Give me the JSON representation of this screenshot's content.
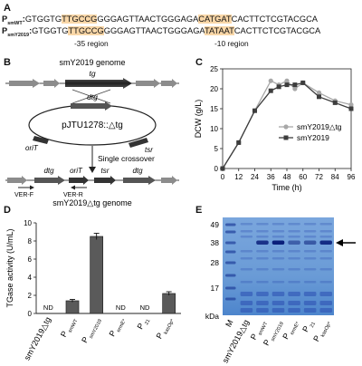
{
  "panel_a": {
    "letter": "A",
    "row1": {
      "label": "P",
      "sub": "smWT",
      "colon": ":",
      "s1": "GTGGTG",
      "s2": "TTGCCG",
      "s3": "GGGAGTTAACTGGGAGA",
      "s4": "CATGAT",
      "s5": "CACTTCTCGTACGCA"
    },
    "row2": {
      "label": "P",
      "sub": "smY2019",
      "colon": ":",
      "s1": "GTGGTG",
      "s2": "TTGCCG",
      "s3": "GGGAGTTAACTGGGAGA",
      "s4": "TATAAT",
      "s5": "CACTTCTCGTACGCA"
    },
    "region35": "-35 region",
    "region10": "-10 region",
    "highlight_color": "#f9d7a8"
  },
  "panel_b": {
    "letter": "B",
    "genome_top": "smY2019 genome",
    "gene_top": "tg",
    "plasmid_gene": "dtg",
    "plasmid_name": "pJTU1278::△tg",
    "oriT": "oriT",
    "tsr": "tsr",
    "crossover": "Single crossover",
    "bottom_dtg_left": "dtg",
    "bottom_oriT": "oriT",
    "bottom_tsr": "tsr",
    "bottom_dtg_right": "dtg",
    "ver_f": "VER-F",
    "ver_r": "VER-R",
    "genome_bottom": "smY2019△tg genome"
  },
  "panel_c": {
    "letter": "C",
    "chart_data": {
      "type": "line",
      "xlabel": "Time (h)",
      "ylabel": "DCW (g/L)",
      "x": [
        0,
        12,
        24,
        36,
        48,
        60,
        72,
        84,
        96
      ],
      "x_detail": [
        0,
        12,
        24,
        36,
        42,
        48,
        54,
        60,
        72,
        84,
        96
      ],
      "xlim": [
        0,
        96
      ],
      "ylim": [
        0,
        25
      ],
      "yticks": [
        0,
        5,
        10,
        15,
        20,
        25
      ],
      "xticks": [
        0,
        12,
        24,
        36,
        48,
        60,
        72,
        84,
        96
      ],
      "legend_position": "right",
      "series": [
        {
          "name": "smY2019△tg",
          "color": "#a8a8a8",
          "marker": "circle",
          "x": [
            0,
            12,
            24,
            36,
            42,
            48,
            54,
            60,
            72,
            84,
            96
          ],
          "values": [
            0,
            6.5,
            14.5,
            22,
            21,
            22,
            20,
            21.5,
            19,
            17,
            16
          ]
        },
        {
          "name": "smY2019",
          "color": "#3d3d3d",
          "marker": "square",
          "x": [
            0,
            12,
            24,
            36,
            42,
            48,
            54,
            60,
            72,
            84,
            96
          ],
          "values": [
            0,
            6.5,
            14.5,
            19.5,
            20.5,
            21,
            21,
            21.5,
            18,
            16.5,
            15
          ]
        }
      ]
    }
  },
  "panel_d": {
    "letter": "D",
    "chart_data": {
      "type": "bar",
      "ylabel": "TGase activity (U/mL)",
      "ylim": [
        0,
        10
      ],
      "yticks": [
        0,
        2,
        4,
        6,
        8,
        10
      ],
      "categories": [
        {
          "main": "smY2019△tg",
          "sub": ""
        },
        {
          "main": "P",
          "sub": "smWT"
        },
        {
          "main": "P",
          "sub": "smY2019"
        },
        {
          "main": "P",
          "sub": "ermE*"
        },
        {
          "main": "P",
          "sub": "21"
        },
        {
          "main": "P",
          "sub": "kasOp*"
        }
      ],
      "values": [
        null,
        1.4,
        8.5,
        null,
        null,
        2.2
      ],
      "errors": [
        0,
        0.15,
        0.35,
        0,
        0,
        0.2
      ],
      "nd_label": "ND",
      "bar_color": "#5a5a5a"
    }
  },
  "panel_e": {
    "letter": "E",
    "markers": [
      "49",
      "38",
      "28",
      "17",
      "kDa"
    ],
    "lanes": [
      {
        "main": "M",
        "sub": ""
      },
      {
        "main": "smY2019△tg",
        "sub": ""
      },
      {
        "main": "P",
        "sub": "smWT"
      },
      {
        "main": "P",
        "sub": "smY2019"
      },
      {
        "main": "P",
        "sub": "ermE*"
      },
      {
        "main": "P",
        "sub": "21"
      },
      {
        "main": "P",
        "sub": "kasOp*"
      }
    ],
    "gel_color": "#6f9dd8"
  }
}
